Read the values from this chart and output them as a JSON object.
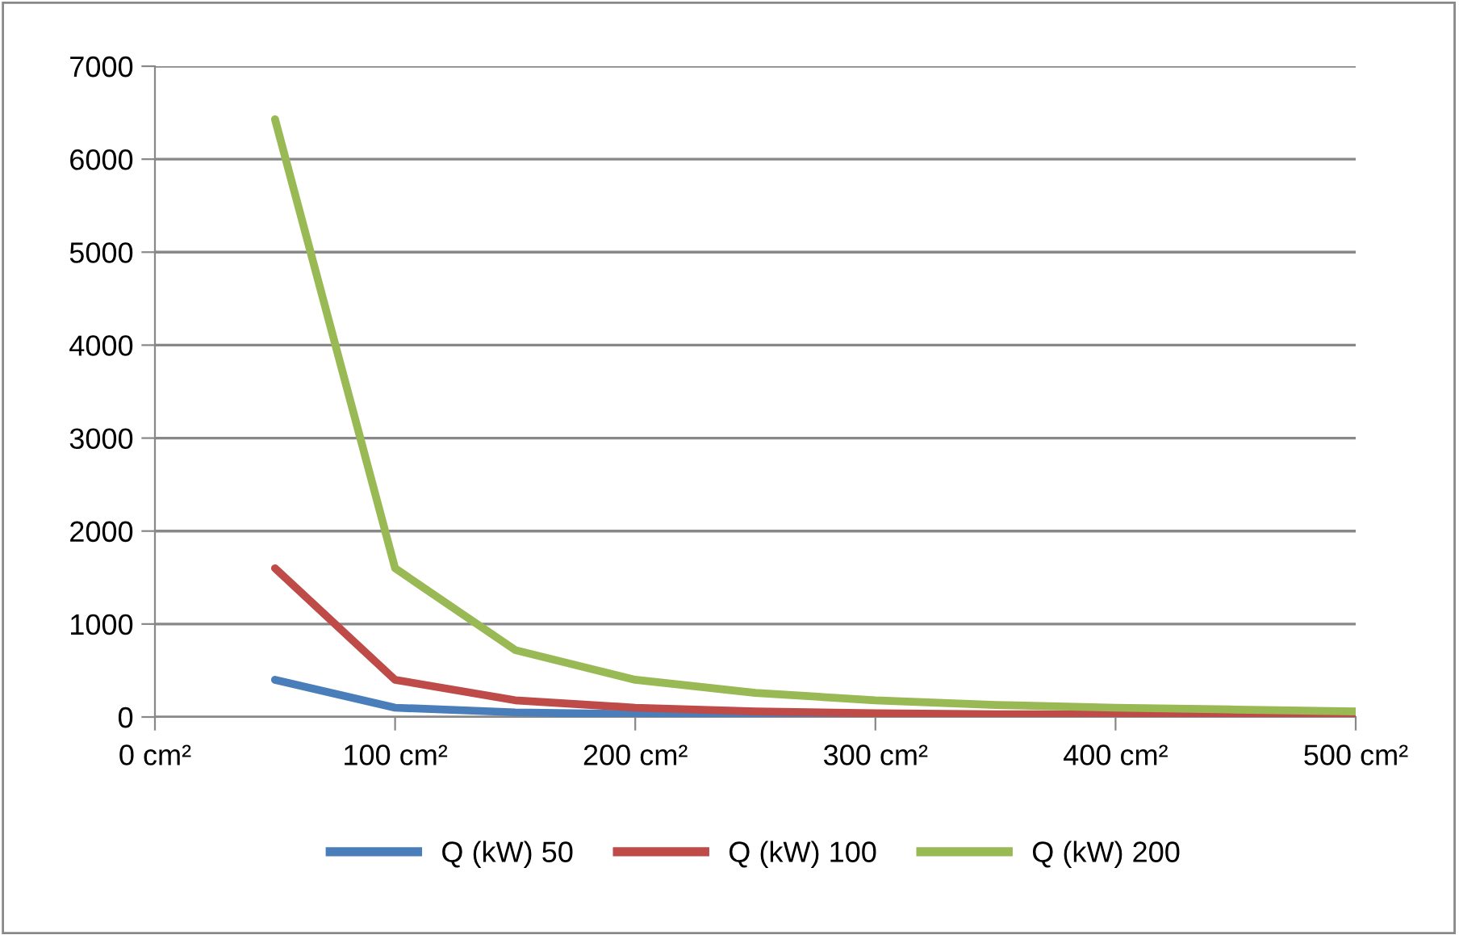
{
  "chart_data": {
    "type": "line",
    "x": [
      50,
      100,
      150,
      200,
      250,
      300,
      350,
      400,
      450,
      500
    ],
    "series": [
      {
        "name": "Q (kW) 50",
        "color": "#4a7ebb",
        "values": [
          400,
          100,
          50,
          30,
          20,
          10,
          10,
          null,
          null,
          null
        ]
      },
      {
        "name": "Q (kW) 100",
        "color": "#be4b48",
        "values": [
          1600,
          400,
          180,
          100,
          60,
          40,
          30,
          30,
          20,
          20
        ]
      },
      {
        "name": "Q (kW) 200",
        "color": "#98b954",
        "values": [
          6430,
          1600,
          720,
          400,
          260,
          180,
          130,
          100,
          80,
          60
        ]
      }
    ],
    "xlim": [
      0,
      500
    ],
    "xticks": [
      {
        "value": 0,
        "label": "0 cm²"
      },
      {
        "value": 100,
        "label": "100 cm²"
      },
      {
        "value": 200,
        "label": "200 cm²"
      },
      {
        "value": 300,
        "label": "300 cm²"
      },
      {
        "value": 400,
        "label": "400 cm²"
      },
      {
        "value": 500,
        "label": "500 cm²"
      }
    ],
    "ylim": [
      0,
      7000
    ],
    "yticks": [
      0,
      1000,
      2000,
      3000,
      4000,
      5000,
      6000,
      7000
    ],
    "grid": "y",
    "legend": "bottom",
    "marker": "none",
    "line_style": "solid"
  }
}
